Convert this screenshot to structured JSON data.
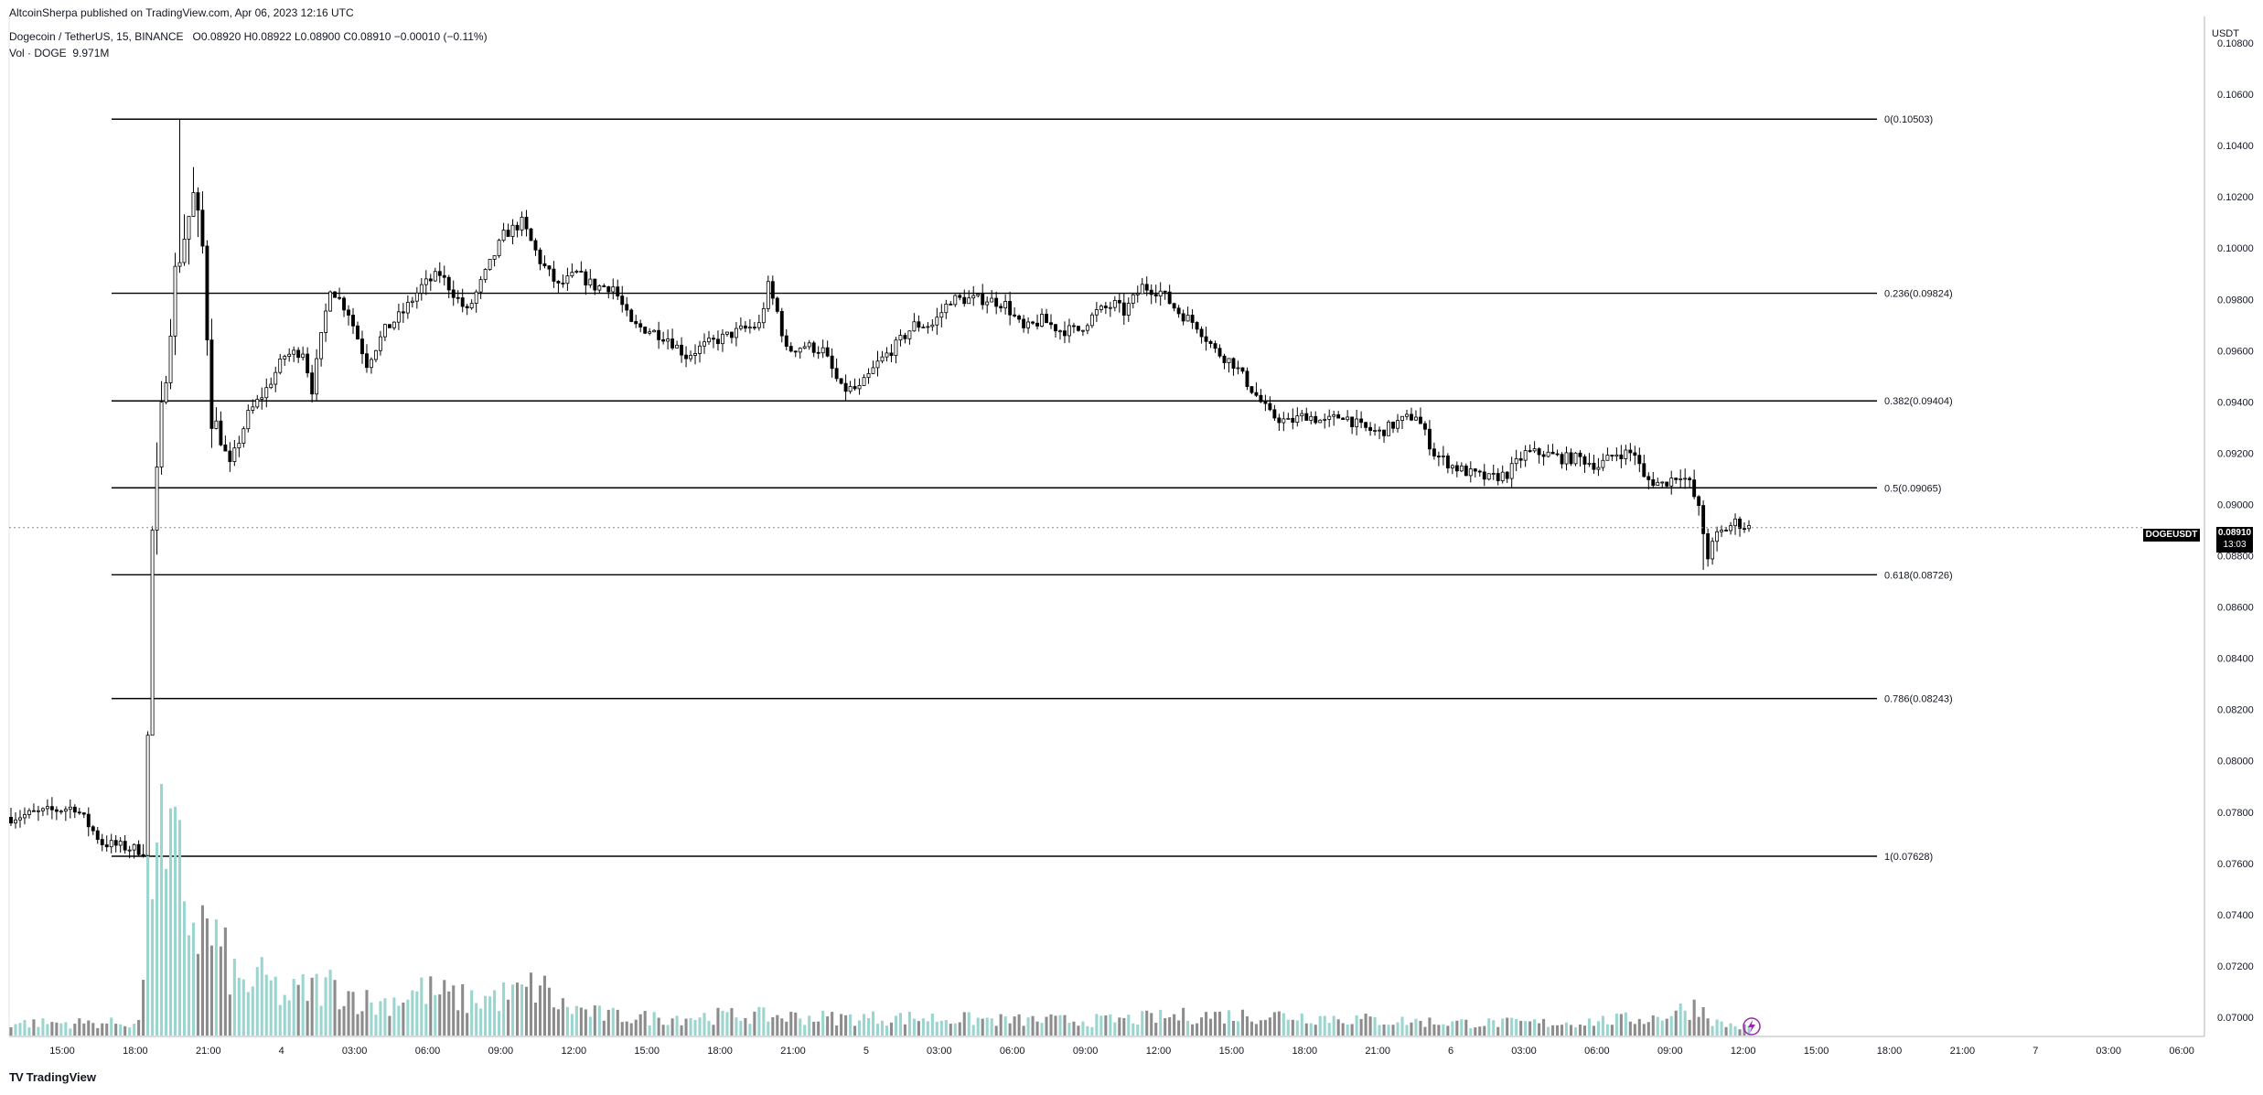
{
  "header": {
    "published": "AltcoinSherpa published on TradingView.com, Apr 06, 2023 12:16 UTC",
    "symbol": "Dogecoin / TetherUS, 15, BINANCE",
    "ohlc": "O0.08920 H0.08922 L0.08900 C0.08910 −0.00010 (−0.11%)",
    "volume_label": "Vol · DOGE",
    "volume_value": "9.971M"
  },
  "price_axis": {
    "currency": "USDT",
    "ticks": [
      "0.10800",
      "0.10600",
      "0.10400",
      "0.10200",
      "0.10000",
      "0.09800",
      "0.09600",
      "0.09400",
      "0.09200",
      "0.09000",
      "0.08800",
      "0.08600",
      "0.08400",
      "0.08200",
      "0.08000",
      "0.07800",
      "0.07600",
      "0.07400",
      "0.07200",
      "0.07000"
    ]
  },
  "time_axis": {
    "ticks": [
      "15:00",
      "18:00",
      "21:00",
      "4",
      "03:00",
      "06:00",
      "09:00",
      "12:00",
      "15:00",
      "18:00",
      "21:00",
      "5",
      "03:00",
      "06:00",
      "09:00",
      "12:00",
      "15:00",
      "18:00",
      "21:00",
      "6",
      "03:00",
      "06:00",
      "09:00",
      "12:00",
      "15:00",
      "18:00",
      "21:00",
      "7",
      "03:00",
      "06:00"
    ]
  },
  "last_price": {
    "symbol": "DOGEUSDT",
    "price": "0.08910",
    "countdown": "13:03"
  },
  "footer": {
    "brand": "TradingView"
  },
  "colors": {
    "up_volume": "#9bd5cf",
    "down_volume": "#8c8c8c",
    "candle": "#000000",
    "fib_line": "#000000"
  },
  "chart_data": {
    "type": "candlestick",
    "title": "Dogecoin / TetherUS, 15, BINANCE",
    "ylabel": "USDT",
    "ylim": [
      0.0693,
      0.1092
    ],
    "grid": false,
    "fib_levels": [
      {
        "ratio": "0",
        "price": 0.10503,
        "label": "0(0.10503)"
      },
      {
        "ratio": "0.236",
        "price": 0.09824,
        "label": "0.236(0.09824)"
      },
      {
        "ratio": "0.382",
        "price": 0.09404,
        "label": "0.382(0.09404)"
      },
      {
        "ratio": "0.5",
        "price": 0.09065,
        "label": "0.5(0.09065)"
      },
      {
        "ratio": "0.618",
        "price": 0.08726,
        "label": "0.618(0.08726)"
      },
      {
        "ratio": "0.786",
        "price": 0.08243,
        "label": "0.786(0.08243)"
      },
      {
        "ratio": "1",
        "price": 0.07628,
        "label": "1(0.07628)"
      }
    ],
    "price_waypoints": [
      [
        0,
        0.0778
      ],
      [
        14,
        0.0782
      ],
      [
        20,
        0.0768
      ],
      [
        29,
        0.0765
      ],
      [
        30,
        0.0775
      ],
      [
        31,
        0.0885
      ],
      [
        33,
        0.0935
      ],
      [
        36,
        0.099
      ],
      [
        38,
        0.1005
      ],
      [
        40,
        0.102
      ],
      [
        42,
        0.1
      ],
      [
        44,
        0.0935
      ],
      [
        48,
        0.0915
      ],
      [
        52,
        0.0935
      ],
      [
        56,
        0.0945
      ],
      [
        60,
        0.0958
      ],
      [
        64,
        0.096
      ],
      [
        66,
        0.0945
      ],
      [
        70,
        0.0985
      ],
      [
        74,
        0.0975
      ],
      [
        78,
        0.0955
      ],
      [
        82,
        0.0968
      ],
      [
        86,
        0.0975
      ],
      [
        90,
        0.0985
      ],
      [
        94,
        0.099
      ],
      [
        96,
        0.0985
      ],
      [
        100,
        0.0975
      ],
      [
        104,
        0.099
      ],
      [
        108,
        0.1005
      ],
      [
        112,
        0.101
      ],
      [
        116,
        0.0995
      ],
      [
        120,
        0.0985
      ],
      [
        124,
        0.099
      ],
      [
        128,
        0.0985
      ],
      [
        132,
        0.0985
      ],
      [
        136,
        0.097
      ],
      [
        140,
        0.0968
      ],
      [
        144,
        0.0965
      ],
      [
        148,
        0.0958
      ],
      [
        152,
        0.0962
      ],
      [
        156,
        0.0965
      ],
      [
        160,
        0.0968
      ],
      [
        164,
        0.097
      ],
      [
        166,
        0.0985
      ],
      [
        168,
        0.0975
      ],
      [
        170,
        0.096
      ],
      [
        174,
        0.0962
      ],
      [
        178,
        0.096
      ],
      [
        182,
        0.0945
      ],
      [
        186,
        0.0945
      ],
      [
        190,
        0.0955
      ],
      [
        194,
        0.0962
      ],
      [
        198,
        0.097
      ],
      [
        202,
        0.097
      ],
      [
        206,
        0.098
      ],
      [
        210,
        0.098
      ],
      [
        214,
        0.098
      ],
      [
        218,
        0.0978
      ],
      [
        222,
        0.0968
      ],
      [
        226,
        0.0972
      ],
      [
        230,
        0.0968
      ],
      [
        234,
        0.0968
      ],
      [
        238,
        0.0975
      ],
      [
        242,
        0.0978
      ],
      [
        244,
        0.0975
      ],
      [
        248,
        0.0985
      ],
      [
        252,
        0.0983
      ],
      [
        256,
        0.0975
      ],
      [
        260,
        0.097
      ],
      [
        264,
        0.096
      ],
      [
        268,
        0.0955
      ],
      [
        272,
        0.0945
      ],
      [
        276,
        0.0935
      ],
      [
        280,
        0.0932
      ],
      [
        284,
        0.0935
      ],
      [
        288,
        0.0932
      ],
      [
        292,
        0.0935
      ],
      [
        296,
        0.093
      ],
      [
        300,
        0.0928
      ],
      [
        304,
        0.0932
      ],
      [
        308,
        0.0935
      ],
      [
        312,
        0.092
      ],
      [
        316,
        0.0915
      ],
      [
        320,
        0.0912
      ],
      [
        324,
        0.091
      ],
      [
        328,
        0.0912
      ],
      [
        332,
        0.092
      ],
      [
        336,
        0.092
      ],
      [
        340,
        0.0918
      ],
      [
        344,
        0.0918
      ],
      [
        348,
        0.0915
      ],
      [
        352,
        0.092
      ],
      [
        356,
        0.092
      ],
      [
        358,
        0.091
      ],
      [
        362,
        0.0908
      ],
      [
        366,
        0.0912
      ],
      [
        368,
        0.0908
      ],
      [
        370,
        0.0898
      ],
      [
        372,
        0.088
      ],
      [
        374,
        0.0888
      ],
      [
        378,
        0.0893
      ],
      [
        381,
        0.0891
      ]
    ],
    "volume_waypoints": [
      [
        0,
        0.05
      ],
      [
        28,
        0.05
      ],
      [
        30,
        0.5
      ],
      [
        32,
        0.98
      ],
      [
        34,
        0.6
      ],
      [
        36,
        0.7
      ],
      [
        40,
        0.45
      ],
      [
        44,
        0.4
      ],
      [
        50,
        0.2
      ],
      [
        56,
        0.22
      ],
      [
        60,
        0.15
      ],
      [
        64,
        0.18
      ],
      [
        70,
        0.2
      ],
      [
        80,
        0.12
      ],
      [
        90,
        0.18
      ],
      [
        100,
        0.14
      ],
      [
        110,
        0.16
      ],
      [
        116,
        0.2
      ],
      [
        120,
        0.12
      ],
      [
        130,
        0.08
      ],
      [
        140,
        0.07
      ],
      [
        160,
        0.08
      ],
      [
        180,
        0.07
      ],
      [
        200,
        0.07
      ],
      [
        220,
        0.06
      ],
      [
        240,
        0.06
      ],
      [
        260,
        0.08
      ],
      [
        280,
        0.08
      ],
      [
        300,
        0.06
      ],
      [
        320,
        0.05
      ],
      [
        340,
        0.05
      ],
      [
        360,
        0.07
      ],
      [
        366,
        0.1
      ],
      [
        370,
        0.12
      ],
      [
        374,
        0.05
      ],
      [
        381,
        0.03
      ]
    ],
    "volume_max": 10
  }
}
